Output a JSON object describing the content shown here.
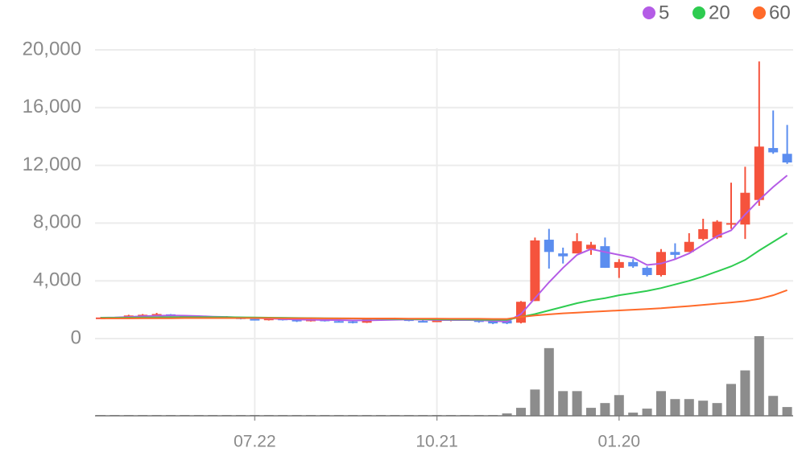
{
  "chart_data": {
    "type": "candlestick",
    "categories": [
      null,
      null,
      null,
      null,
      null,
      null,
      null,
      null,
      null,
      null,
      null,
      "07.22",
      null,
      null,
      null,
      null,
      null,
      null,
      null,
      null,
      null,
      null,
      null,
      null,
      "10.21",
      null,
      null,
      null,
      null,
      null,
      null,
      null,
      null,
      null,
      null,
      null,
      null,
      "01.20",
      null,
      null,
      null,
      null,
      null,
      null,
      null,
      null,
      null,
      null,
      null,
      null
    ],
    "open": [
      1420,
      1440,
      1450,
      1580,
      1600,
      1680,
      1560,
      1530,
      1490,
      1470,
      1480,
      1360,
      1270,
      1380,
      1300,
      1200,
      1320,
      1210,
      1190,
      1100,
      1350,
      1380,
      1350,
      1220,
      1200,
      1250,
      1340,
      1300,
      1200,
      1250,
      1100,
      2600,
      6850,
      5900,
      5900,
      6200,
      6400,
      4900,
      5300,
      4900,
      4400,
      6000,
      6000,
      6900,
      7000,
      7900,
      7900,
      9600,
      13200,
      12800
    ],
    "high": [
      1480,
      1500,
      1650,
      1700,
      1780,
      1700,
      1600,
      1560,
      1520,
      1560,
      1500,
      1420,
      1420,
      1420,
      1380,
      1400,
      1340,
      1280,
      1280,
      1400,
      1420,
      1450,
      1400,
      1300,
      1280,
      1380,
      1400,
      1350,
      1250,
      1300,
      2600,
      7000,
      7600,
      6300,
      7300,
      6700,
      7000,
      5500,
      5500,
      5000,
      6200,
      6600,
      7300,
      8300,
      8200,
      10800,
      11900,
      19200,
      15800,
      14800
    ],
    "low": [
      1400,
      1420,
      1430,
      1520,
      1560,
      1550,
      1480,
      1450,
      1440,
      1440,
      1330,
      1250,
      1250,
      1250,
      1150,
      1180,
      1180,
      1150,
      1050,
      1080,
      1300,
      1300,
      1200,
      1150,
      1150,
      1200,
      1280,
      1100,
      1000,
      1000,
      1050,
      2600,
      4850,
      5200,
      5900,
      5800,
      4900,
      4200,
      4900,
      4300,
      4300,
      5500,
      6000,
      6800,
      6900,
      7600,
      6900,
      9200,
      12800,
      12100
    ],
    "close": [
      1460,
      1470,
      1600,
      1650,
      1700,
      1580,
      1540,
      1480,
      1460,
      1500,
      1350,
      1280,
      1400,
      1280,
      1200,
      1350,
      1200,
      1200,
      1150,
      1350,
      1400,
      1350,
      1220,
      1200,
      1250,
      1350,
      1300,
      1150,
      1050,
      1050,
      2550,
      6800,
      6000,
      5700,
      6750,
      6500,
      4900,
      5300,
      5000,
      4400,
      6000,
      5800,
      6700,
      7580,
      8100,
      8000,
      10100,
      13300,
      12900,
      12200
    ],
    "up_color": "#f5533d",
    "down_color": "#5b8def",
    "series": [
      {
        "name": "5",
        "color": "#b45ce6",
        "values": [
          1450,
          1460,
          1500,
          1550,
          1580,
          1600,
          1590,
          1560,
          1520,
          1500,
          1460,
          1420,
          1390,
          1350,
          1320,
          1300,
          1290,
          1280,
          1260,
          1260,
          1280,
          1300,
          1320,
          1310,
          1280,
          1280,
          1290,
          1270,
          1230,
          1170,
          1700,
          2800,
          3900,
          4900,
          5800,
          6200,
          6000,
          5800,
          5600,
          5100,
          5200,
          5500,
          5900,
          6500,
          7100,
          7500,
          8600,
          9600,
          10500,
          11300
        ]
      },
      {
        "name": "20",
        "color": "#2ecc50",
        "values": [
          1440,
          1440,
          1450,
          1460,
          1470,
          1480,
          1480,
          1480,
          1480,
          1480,
          1470,
          1460,
          1450,
          1440,
          1430,
          1420,
          1410,
          1400,
          1390,
          1380,
          1370,
          1360,
          1350,
          1340,
          1330,
          1320,
          1320,
          1310,
          1300,
          1300,
          1500,
          1700,
          1950,
          2200,
          2450,
          2650,
          2800,
          3000,
          3150,
          3300,
          3500,
          3750,
          4000,
          4300,
          4650,
          5000,
          5450,
          6100,
          6700,
          7300
        ]
      },
      {
        "name": "60",
        "color": "#ff6a2a",
        "values": [
          1400,
          1400,
          1400,
          1410,
          1410,
          1410,
          1420,
          1420,
          1420,
          1420,
          1420,
          1420,
          1420,
          1410,
          1410,
          1410,
          1400,
          1400,
          1400,
          1390,
          1390,
          1390,
          1380,
          1380,
          1380,
          1370,
          1370,
          1370,
          1360,
          1360,
          1500,
          1600,
          1680,
          1750,
          1800,
          1850,
          1900,
          1950,
          2000,
          2050,
          2100,
          2180,
          2250,
          2330,
          2420,
          2500,
          2600,
          2750,
          3000,
          3350
        ]
      }
    ],
    "volume": [
      1,
      1,
      1,
      1,
      1,
      1,
      1,
      1,
      1,
      1,
      1,
      1,
      1,
      1,
      1,
      1,
      1,
      1,
      1,
      1,
      1,
      1,
      1,
      1,
      1,
      1,
      1,
      1,
      1,
      3,
      10,
      33,
      85,
      31,
      31,
      10,
      16,
      26,
      4,
      9,
      31,
      21,
      21,
      19,
      16,
      40,
      57,
      100,
      25,
      11
    ],
    "volume_color": "#8c8c8c",
    "volume_ylim": [
      0,
      100
    ],
    "ylim": [
      0,
      20000
    ],
    "yticks": [
      0,
      {
        "value": 4000,
        "label": "4,000"
      },
      {
        "value": 8000,
        "label": "8,000"
      },
      {
        "value": 12000,
        "label": "12,000"
      },
      {
        "value": 16000,
        "label": "16,000"
      },
      {
        "value": 20000,
        "label": "20,000"
      }
    ],
    "grid": true,
    "legend": "top-right"
  }
}
